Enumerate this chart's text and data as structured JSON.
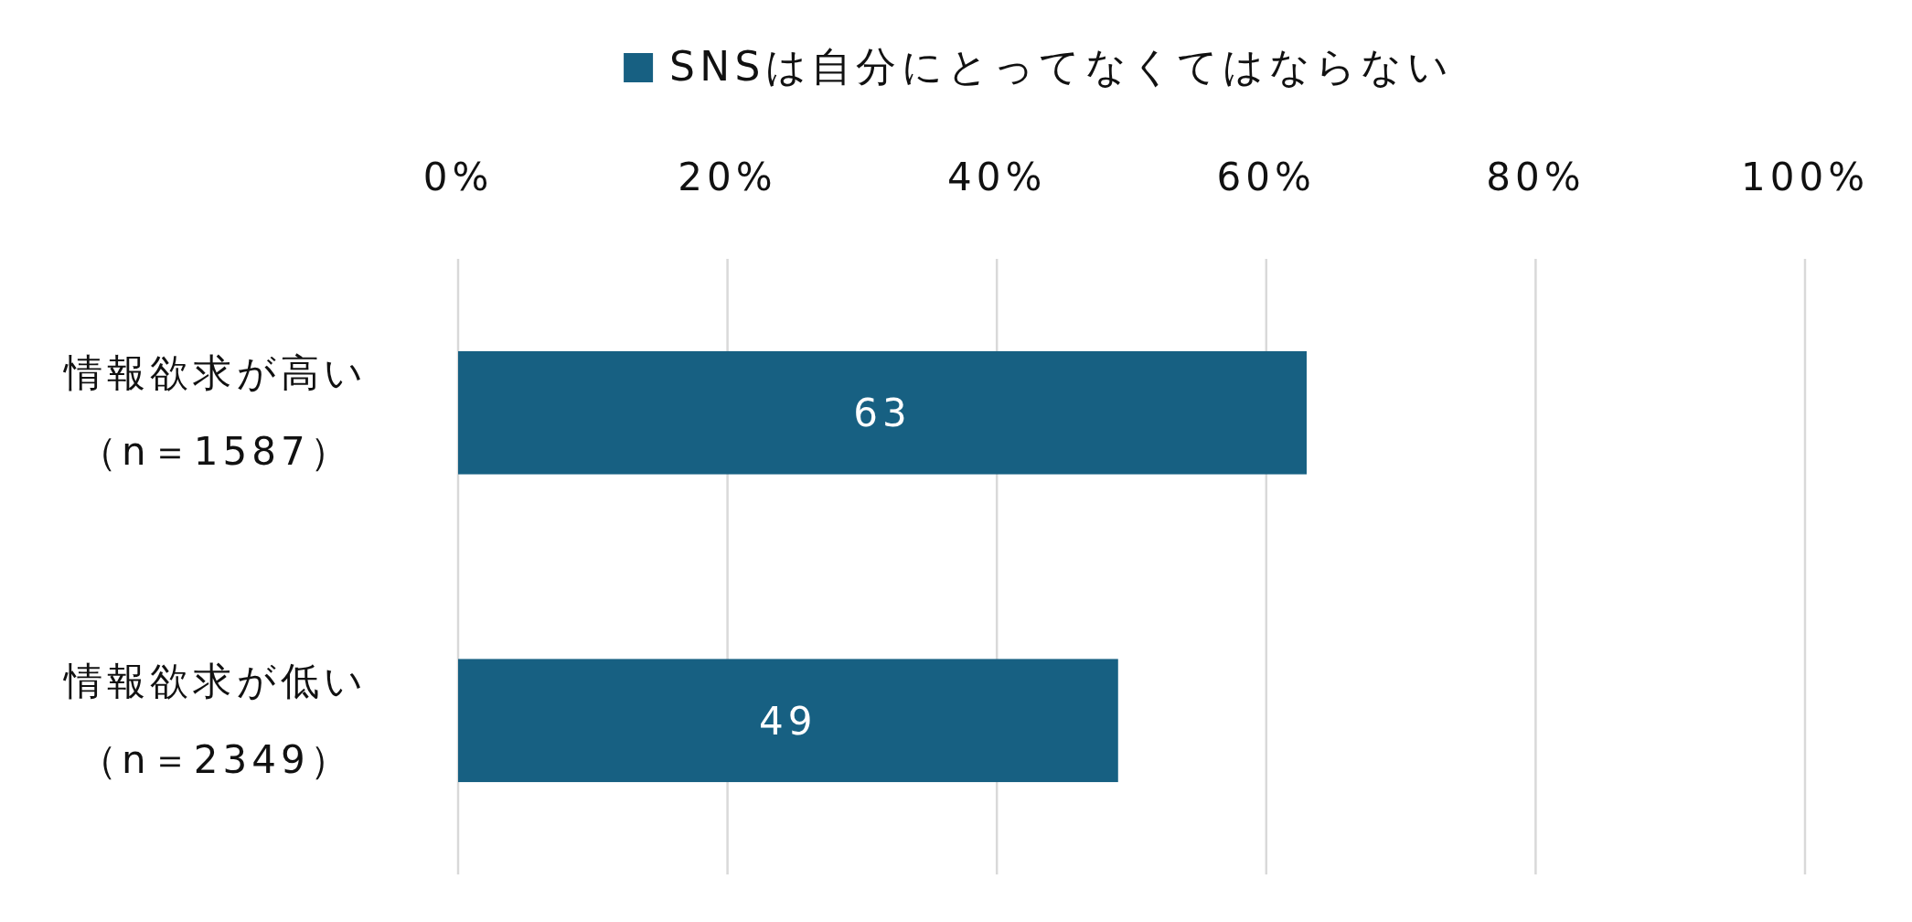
{
  "chart_data": {
    "type": "bar",
    "orientation": "horizontal",
    "categories": [
      "情報欲求が高い（n＝1587）",
      "情報欲求が低い（n＝2349）"
    ],
    "series": [
      {
        "name": "SNSは自分にとってなくてはならない",
        "color": "#176082",
        "values": [
          63,
          49
        ]
      }
    ],
    "xlim": [
      0,
      100
    ],
    "xticks": [
      {
        "value": 0,
        "label": "0%"
      },
      {
        "value": 20,
        "label": "20%"
      },
      {
        "value": 40,
        "label": "40%"
      },
      {
        "value": 60,
        "label": "60%"
      },
      {
        "value": 80,
        "label": "80%"
      },
      {
        "value": 100,
        "label": "100%"
      }
    ],
    "grid": "x",
    "legend": "top",
    "data_labels": true
  }
}
